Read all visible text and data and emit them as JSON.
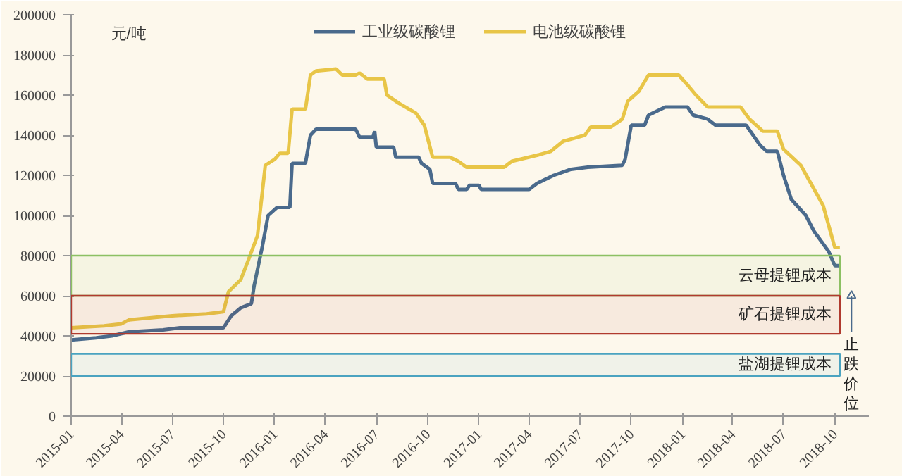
{
  "chart_data": {
    "type": "line",
    "ylabel": "元/吨",
    "xlim": [
      "2015-01-01",
      "2018-12-01"
    ],
    "ylim": [
      0,
      200000
    ],
    "yticks": [
      0,
      20000,
      40000,
      60000,
      80000,
      100000,
      120000,
      140000,
      160000,
      180000,
      200000
    ],
    "xticks": [
      "2015-01",
      "2015-04",
      "2015-07",
      "2015-10",
      "2016-01",
      "2016-04",
      "2016-07",
      "2016-10",
      "2017-01",
      "2017-04",
      "2017-07",
      "2017-10",
      "2018-01",
      "2018-04",
      "2018-07",
      "2018-10"
    ],
    "grid": false,
    "legend": "top",
    "line_style": "solid",
    "marker": "none",
    "bands": [
      {
        "axis": "y",
        "from": 60000,
        "to": 80000,
        "label": "云母提锂成本",
        "color": "#8cc063"
      },
      {
        "axis": "y",
        "from": 41000,
        "to": 60000,
        "label": "矿石提锂成本",
        "color": "#b03a2e"
      },
      {
        "axis": "y",
        "from": 20000,
        "to": 31000,
        "label": "盐湖提锂成本",
        "color": "#4aa3c0"
      }
    ],
    "annotations": [
      "止跌价位"
    ],
    "series": [
      {
        "name": "工业级碳酸锂",
        "color": "#4a6a8c",
        "x": [
          "2015-01-01",
          "2015-02-15",
          "2015-03-15",
          "2015-04-15",
          "2015-06-15",
          "2015-07-15",
          "2015-10-01",
          "2015-10-15",
          "2015-11-01",
          "2015-11-20",
          "2015-11-25",
          "2015-12-10",
          "2015-12-20",
          "2016-01-05",
          "2016-01-28",
          "2016-02-01",
          "2016-02-25",
          "2016-03-01",
          "2016-03-05",
          "2016-03-15",
          "2016-05-25",
          "2016-06-01",
          "2016-06-25",
          "2016-06-28",
          "2016-07-01",
          "2016-08-01",
          "2016-08-05",
          "2016-09-15",
          "2016-09-20",
          "2016-10-05",
          "2016-10-10",
          "2016-11-20",
          "2016-11-25",
          "2016-12-10",
          "2016-12-15",
          "2017-01-01",
          "2017-01-05",
          "2017-04-01",
          "2017-04-15",
          "2017-05-15",
          "2017-06-15",
          "2017-07-15",
          "2017-09-15",
          "2017-09-20",
          "2017-10-01",
          "2017-10-25",
          "2017-11-01",
          "2017-12-01",
          "2018-01-10",
          "2018-01-20",
          "2018-02-15",
          "2018-03-01",
          "2018-04-25",
          "2018-05-10",
          "2018-05-20",
          "2018-06-01",
          "2018-06-20",
          "2018-07-01",
          "2018-07-15",
          "2018-08-10",
          "2018-08-25",
          "2018-09-20",
          "2018-10-01",
          "2018-10-10"
        ],
        "values": [
          38000,
          39000,
          40000,
          42000,
          43000,
          44000,
          44000,
          50000,
          54000,
          56000,
          65000,
          85000,
          100000,
          104000,
          104000,
          126000,
          126000,
          134000,
          140000,
          143000,
          143000,
          139000,
          139000,
          142000,
          134000,
          134000,
          129000,
          129000,
          126000,
          123000,
          116000,
          116000,
          113000,
          113000,
          115000,
          115000,
          113000,
          113000,
          116000,
          120000,
          123000,
          124000,
          125000,
          128000,
          145000,
          145000,
          150000,
          154000,
          154000,
          150000,
          148000,
          145000,
          145000,
          139000,
          135000,
          132000,
          132000,
          120000,
          108000,
          100000,
          92000,
          82000,
          75000,
          75000
        ]
      },
      {
        "name": "电池级碳酸锂",
        "color": "#e8c547",
        "x": [
          "2015-01-01",
          "2015-03-01",
          "2015-04-01",
          "2015-04-15",
          "2015-07-01",
          "2015-09-01",
          "2015-10-01",
          "2015-10-10",
          "2015-11-01",
          "2015-11-15",
          "2015-12-01",
          "2015-12-15",
          "2016-01-01",
          "2016-01-10",
          "2016-01-25",
          "2016-02-01",
          "2016-02-25",
          "2016-03-05",
          "2016-03-15",
          "2016-04-20",
          "2016-05-01",
          "2016-05-25",
          "2016-06-01",
          "2016-06-15",
          "2016-07-15",
          "2016-07-20",
          "2016-08-10",
          "2016-09-10",
          "2016-09-25",
          "2016-10-10",
          "2016-11-10",
          "2016-11-25",
          "2016-12-10",
          "2017-02-15",
          "2017-03-01",
          "2017-04-15",
          "2017-05-10",
          "2017-06-01",
          "2017-07-10",
          "2017-07-20",
          "2017-08-25",
          "2017-09-15",
          "2017-09-25",
          "2017-10-15",
          "2017-11-01",
          "2017-12-25",
          "2018-01-10",
          "2018-01-25",
          "2018-02-15",
          "2018-04-15",
          "2018-05-01",
          "2018-05-25",
          "2018-06-20",
          "2018-07-01",
          "2018-08-01",
          "2018-08-15",
          "2018-09-10",
          "2018-09-25",
          "2018-10-01",
          "2018-10-10"
        ],
        "values": [
          44000,
          45000,
          46000,
          48000,
          50000,
          51000,
          52000,
          62000,
          68000,
          78000,
          90000,
          125000,
          128000,
          131000,
          131000,
          153000,
          153000,
          170000,
          172000,
          173000,
          170000,
          170000,
          171000,
          168000,
          168000,
          160000,
          156000,
          151000,
          145000,
          129000,
          129000,
          127000,
          124000,
          124000,
          127000,
          130000,
          132000,
          137000,
          140000,
          144000,
          144000,
          148000,
          157000,
          162000,
          170000,
          170000,
          165000,
          160000,
          154000,
          154000,
          148000,
          142000,
          142000,
          133000,
          125000,
          118000,
          105000,
          90000,
          84000,
          84000
        ]
      }
    ]
  }
}
